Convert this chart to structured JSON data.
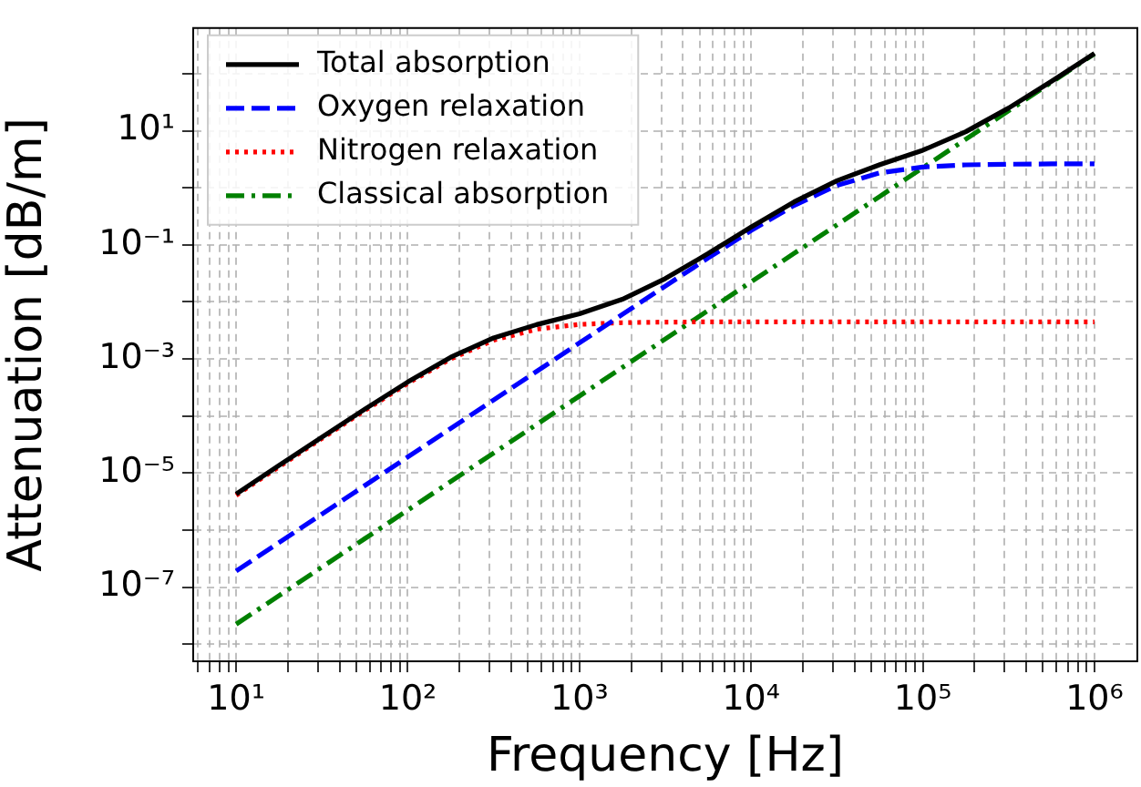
{
  "chart_data": {
    "type": "line",
    "xlabel": "Frequency [Hz]",
    "ylabel": "Attenuation [dB/m]",
    "log": "xy",
    "grid": true,
    "legend": "top left",
    "marker": "none",
    "x": [
      10,
      17.78,
      31.62,
      56.23,
      100,
      177.8,
      316.2,
      562.3,
      1000,
      1778,
      3162,
      5623,
      10000,
      17783,
      31623,
      56234,
      100000,
      177828,
      316228,
      562341,
      1000000
    ],
    "series": [
      {
        "name": "Total absorption",
        "color": "#000000",
        "line_style": "solid",
        "values": [
          4.28e-06,
          1.36e-05,
          4.25e-05,
          0.000132,
          0.000394,
          0.00107,
          0.00234,
          0.00399,
          0.00616,
          0.0111,
          0.0256,
          0.0704,
          0.205,
          0.565,
          1.33,
          2.54,
          4.55,
          9.6,
          25.0,
          73.4,
          227
        ]
      },
      {
        "name": "Oxygen relaxation",
        "color": "#0000ff",
        "line_style": "dashed",
        "values": [
          1.91e-07,
          6.03e-07,
          1.91e-06,
          6.03e-06,
          1.91e-05,
          6.03e-05,
          0.000191,
          0.000603,
          0.00191,
          0.00603,
          0.0189,
          0.0589,
          0.178,
          0.49,
          1.1,
          1.83,
          2.31,
          2.52,
          2.59,
          2.62,
          2.63
        ]
      },
      {
        "name": "Nitrogen relaxation",
        "color": "#ff0000",
        "line_style": "dotted",
        "values": [
          4.07e-06,
          1.29e-05,
          4.04e-05,
          0.000125,
          0.000373,
          0.001,
          0.00213,
          0.00332,
          0.00403,
          0.00432,
          0.00442,
          0.00445,
          0.00446,
          0.00446,
          0.00446,
          0.00446,
          0.00446,
          0.00446,
          0.00446,
          0.00446,
          0.00446
        ]
      },
      {
        "name": "Classical absorption",
        "color": "#008000",
        "line_style": "dashdot",
        "values": [
          2.24e-08,
          7.08e-08,
          2.24e-07,
          7.08e-07,
          2.24e-06,
          7.08e-06,
          2.24e-05,
          7.08e-05,
          0.000224,
          0.000708,
          0.00224,
          0.00708,
          0.0224,
          0.0708,
          0.224,
          0.708,
          2.24,
          7.08,
          22.4,
          70.8,
          224
        ]
      }
    ],
    "xlim": [
      5.62,
      1778000
    ],
    "ylim": [
      5e-09,
      631
    ],
    "xticks": [
      {
        "value": 6,
        "label": null
      },
      {
        "value": 7,
        "label": null
      },
      {
        "value": 8,
        "label": null
      },
      {
        "value": 9,
        "label": null
      },
      {
        "value": 10,
        "label": "10¹"
      },
      {
        "value": 20,
        "label": null
      },
      {
        "value": 30,
        "label": null
      },
      {
        "value": 40,
        "label": null
      },
      {
        "value": 50,
        "label": null
      },
      {
        "value": 60,
        "label": null
      },
      {
        "value": 70,
        "label": null
      },
      {
        "value": 80,
        "label": null
      },
      {
        "value": 90,
        "label": null
      },
      {
        "value": 100,
        "label": "10²"
      },
      {
        "value": 200,
        "label": null
      },
      {
        "value": 300,
        "label": null
      },
      {
        "value": 400,
        "label": null
      },
      {
        "value": 500,
        "label": null
      },
      {
        "value": 600,
        "label": null
      },
      {
        "value": 700,
        "label": null
      },
      {
        "value": 800,
        "label": null
      },
      {
        "value": 900,
        "label": null
      },
      {
        "value": 1000,
        "label": "10³"
      },
      {
        "value": 2000,
        "label": null
      },
      {
        "value": 3000,
        "label": null
      },
      {
        "value": 4000,
        "label": null
      },
      {
        "value": 5000,
        "label": null
      },
      {
        "value": 6000,
        "label": null
      },
      {
        "value": 7000,
        "label": null
      },
      {
        "value": 8000,
        "label": null
      },
      {
        "value": 9000,
        "label": null
      },
      {
        "value": 10000,
        "label": "10⁴"
      },
      {
        "value": 20000,
        "label": null
      },
      {
        "value": 30000,
        "label": null
      },
      {
        "value": 40000,
        "label": null
      },
      {
        "value": 50000,
        "label": null
      },
      {
        "value": 60000,
        "label": null
      },
      {
        "value": 70000,
        "label": null
      },
      {
        "value": 80000,
        "label": null
      },
      {
        "value": 90000,
        "label": null
      },
      {
        "value": 100000,
        "label": "10⁵"
      },
      {
        "value": 200000,
        "label": null
      },
      {
        "value": 300000,
        "label": null
      },
      {
        "value": 400000,
        "label": null
      },
      {
        "value": 500000,
        "label": null
      },
      {
        "value": 600000,
        "label": null
      },
      {
        "value": 700000,
        "label": null
      },
      {
        "value": 800000,
        "label": null
      },
      {
        "value": 900000,
        "label": null
      },
      {
        "value": 1000000,
        "label": "10⁶"
      }
    ],
    "yticks": [
      {
        "value": 1e-08,
        "label": null
      },
      {
        "value": 1e-07,
        "label": "10⁻⁷"
      },
      {
        "value": 1e-06,
        "label": null
      },
      {
        "value": 1e-05,
        "label": "10⁻⁵"
      },
      {
        "value": 0.0001,
        "label": null
      },
      {
        "value": 0.001,
        "label": "10⁻³"
      },
      {
        "value": 0.01,
        "label": null
      },
      {
        "value": 0.1,
        "label": "10⁻¹"
      },
      {
        "value": 1,
        "label": null
      },
      {
        "value": 10,
        "label": "10¹"
      },
      {
        "value": 100,
        "label": null
      }
    ]
  }
}
